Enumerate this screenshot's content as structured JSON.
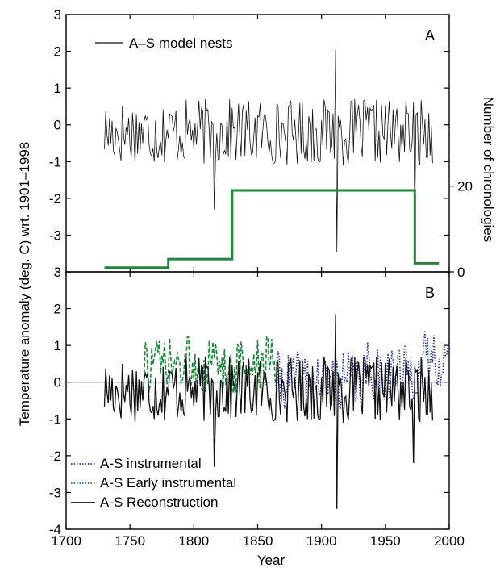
{
  "figure": {
    "ylabel_left": "Temperature anomaly (deg. C) wrt. 1901–1998",
    "ylabel_right": "Number of chronologies",
    "xlabel": "Year"
  },
  "chart_data": [
    {
      "type": "line",
      "panel_label": "A",
      "xlim": [
        1700,
        2000
      ],
      "ylim": [
        -4,
        3
      ],
      "x_ticks": [
        1700,
        1750,
        1800,
        1850,
        1900,
        1950,
        2000
      ],
      "y_ticks": [
        -3,
        -2,
        -1,
        0,
        1,
        2,
        3
      ],
      "legend_position": "top-left",
      "series": [
        {
          "name": "A–S model nests",
          "color": "#111111",
          "start_year": 1730,
          "end_year": 1987,
          "range": [
            -3.45,
            2.05
          ],
          "spikes": [
            {
              "x": 1911,
              "y": 2.05
            },
            {
              "x": 1912,
              "y": -3.45
            },
            {
              "x": 1973,
              "y": -2.6
            },
            {
              "x": 1816,
              "y": -2.3
            }
          ]
        },
        {
          "name": "Number of chronologies",
          "axis": "right",
          "color": "#1a8a3a",
          "right_ticks": [
            0,
            20
          ],
          "right_range": [
            0,
            60
          ],
          "x": [
            1730,
            1780,
            1780,
            1830,
            1830,
            1973,
            1973,
            1992
          ],
          "y": [
            1,
            1,
            3,
            3,
            19,
            19,
            2,
            2
          ]
        }
      ]
    },
    {
      "type": "line",
      "panel_label": "B",
      "xlim": [
        1700,
        2000
      ],
      "ylim": [
        -4,
        3
      ],
      "x_ticks": [
        1700,
        1750,
        1800,
        1850,
        1900,
        1950,
        2000
      ],
      "y_ticks": [
        -4,
        -3,
        -2,
        -1,
        0,
        1,
        2,
        3
      ],
      "reference_line": {
        "y": 0,
        "color": "#6a3db8"
      },
      "legend_position": "bottom-left",
      "series": [
        {
          "name": "A-S instrumental",
          "style": "dotted",
          "color": "#2b3a9a",
          "start_year": 1865,
          "end_year": 2000,
          "range": [
            -1.5,
            2.2
          ]
        },
        {
          "name": "A-S Early instrumental",
          "style": "dashed",
          "color": "#1a8a3a",
          "start_year": 1761,
          "end_year": 1864,
          "range": [
            -1.0,
            1.8
          ]
        },
        {
          "name": "A-S Reconstruction",
          "style": "solid",
          "color": "#111111",
          "start_year": 1730,
          "end_year": 1987,
          "range": [
            -3.45,
            1.85
          ],
          "spikes": [
            {
              "x": 1911,
              "y": 1.85
            },
            {
              "x": 1912,
              "y": -3.45
            },
            {
              "x": 1816,
              "y": -2.3
            },
            {
              "x": 1972,
              "y": -2.2
            }
          ]
        }
      ]
    }
  ]
}
